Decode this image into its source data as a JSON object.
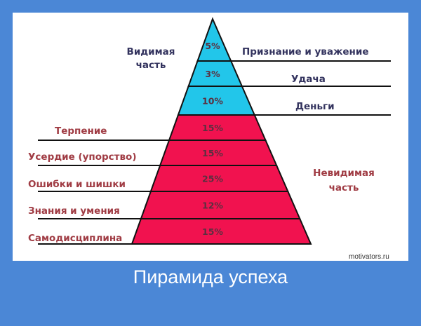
{
  "diagram": {
    "visible_label": [
      "Видимая",
      "часть"
    ],
    "invisible_label": [
      "Невидимая",
      "часть"
    ],
    "colors": {
      "visible": "#22c6ea",
      "invisible": "#f1124f",
      "background": "#4b87d6"
    },
    "levels": [
      {
        "percent": "5%",
        "label": "Признание и уважение",
        "part": "visible"
      },
      {
        "percent": "3%",
        "label": "Удача",
        "part": "visible"
      },
      {
        "percent": "10%",
        "label": "Деньги",
        "part": "visible"
      },
      {
        "percent": "15%",
        "label": "Терпение",
        "part": "invisible"
      },
      {
        "percent": "15%",
        "label": "Усердие (упорство)",
        "part": "invisible"
      },
      {
        "percent": "25%",
        "label": "Ошибки и шишки",
        "part": "invisible"
      },
      {
        "percent": "12%",
        "label": "Знания и умения",
        "part": "invisible"
      },
      {
        "percent": "15%",
        "label": "Самодисциплина",
        "part": "invisible"
      }
    ]
  },
  "caption": "Пирамида успеха",
  "watermark": "motivators.ru"
}
